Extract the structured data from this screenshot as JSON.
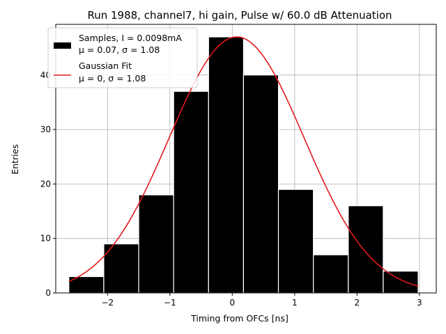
{
  "chart_data": {
    "type": "bar",
    "title": "Run 1988, channel7, hi gain, Pulse w/ 60.0 dB Attenuation",
    "xlabel": "Timing from OFCs [ns]",
    "ylabel": "Entries",
    "xlim": [
      -2.83,
      3.27
    ],
    "ylim": [
      0,
      49.3
    ],
    "xticks": [
      -2,
      -1,
      0,
      1,
      2,
      3
    ],
    "xtick_labels": [
      "−2",
      "−1",
      "0",
      "1",
      "2",
      "3"
    ],
    "yticks": [
      0,
      10,
      20,
      30,
      40
    ],
    "ytick_labels": [
      "0",
      "10",
      "20",
      "30",
      "40"
    ],
    "grid": true,
    "legend_position": "top-left",
    "colors": {
      "bars": "#000000",
      "bar_edge": "#ffffff",
      "fit": "#e41a1c",
      "grid": "#b0b0b0"
    },
    "histogram": {
      "name": "Samples, I = 0.0098mA",
      "stats": "μ = 0.07, σ = 1.08",
      "bin_edges": [
        -2.62,
        -2.06,
        -1.5,
        -0.94,
        -0.38,
        0.18,
        0.74,
        1.3,
        1.86,
        2.42,
        2.98
      ],
      "counts": [
        3,
        9,
        18,
        37,
        47,
        40,
        19,
        7,
        16,
        4
      ]
    },
    "fit": {
      "name": "Gaussian Fit",
      "stats": "μ = 0, σ = 1.08",
      "x_range": [
        -2.62,
        2.98
      ],
      "mu_plot": 0.07,
      "sigma": 1.08,
      "amplitude": 47
    }
  }
}
